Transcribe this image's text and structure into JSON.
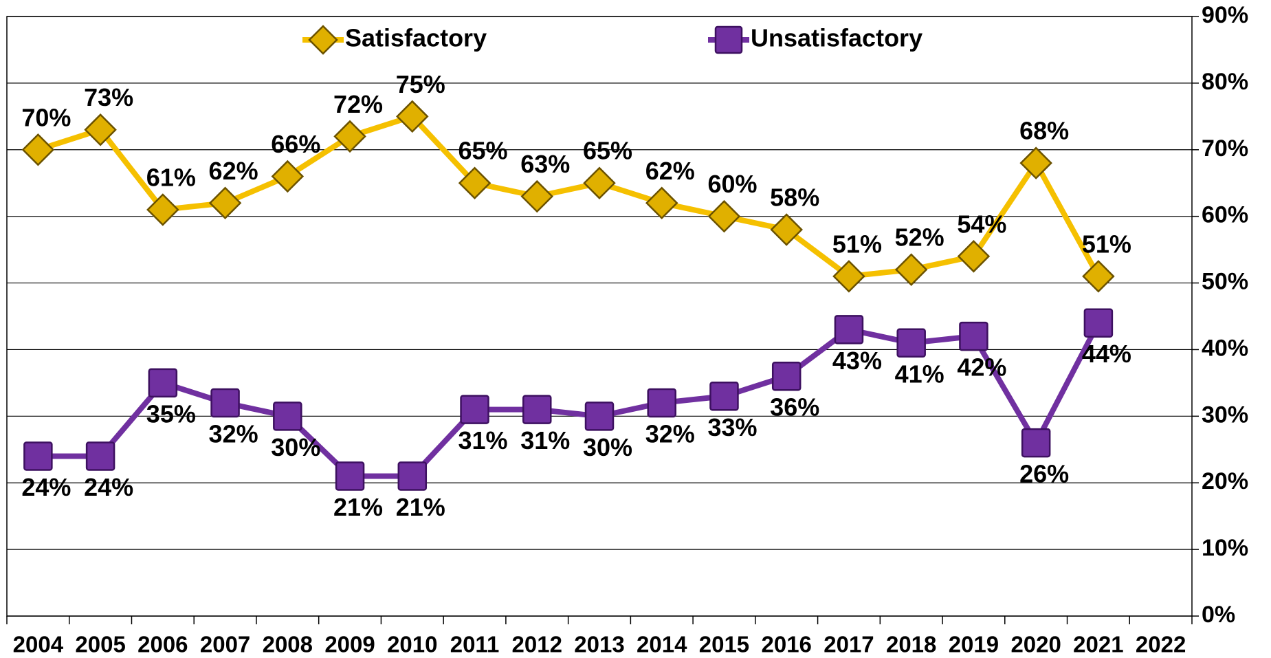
{
  "chart_data": {
    "type": "line",
    "categories": [
      "2004",
      "2005",
      "2006",
      "2007",
      "2008",
      "2009",
      "2010",
      "2011",
      "2012",
      "2013",
      "2014",
      "2015",
      "2016",
      "2017",
      "2018",
      "2019",
      "2020",
      "2021",
      "2022"
    ],
    "series": [
      {
        "name": "Satisfactory",
        "color": "#f5c000",
        "marker": "diamond",
        "values": [
          70,
          73,
          61,
          62,
          66,
          72,
          75,
          65,
          63,
          65,
          62,
          60,
          58,
          51,
          52,
          54,
          68,
          51,
          null
        ],
        "value_labels": [
          "70%",
          "73%",
          "61%",
          "62%",
          "66%",
          "72%",
          "75%",
          "65%",
          "63%",
          "65%",
          "62%",
          "60%",
          "58%",
          "51%",
          "52%",
          "54%",
          "68%",
          "51%",
          null
        ]
      },
      {
        "name": "Unsatisfactory",
        "color": "#7030a0",
        "marker": "square",
        "values": [
          24,
          24,
          35,
          32,
          30,
          21,
          21,
          31,
          31,
          30,
          32,
          33,
          36,
          43,
          41,
          42,
          26,
          44,
          null
        ],
        "value_labels": [
          "24%",
          "24%",
          "35%",
          "32%",
          "30%",
          "21%",
          "21%",
          "31%",
          "31%",
          "30%",
          "32%",
          "33%",
          "36%",
          "43%",
          "41%",
          "42%",
          "26%",
          "44%",
          null
        ]
      }
    ],
    "ylim": [
      0,
      90
    ],
    "yticks": [
      {
        "value": 0,
        "label": "0%"
      },
      {
        "value": 10,
        "label": "10%"
      },
      {
        "value": 20,
        "label": "20%"
      },
      {
        "value": 30,
        "label": "30%"
      },
      {
        "value": 40,
        "label": "40%"
      },
      {
        "value": 50,
        "label": "50%"
      },
      {
        "value": 60,
        "label": "60%"
      },
      {
        "value": 70,
        "label": "70%"
      },
      {
        "value": 80,
        "label": "80%"
      },
      {
        "value": 90,
        "label": "90%"
      }
    ],
    "y_axis_side": "right",
    "grid": true,
    "legend": "top"
  }
}
